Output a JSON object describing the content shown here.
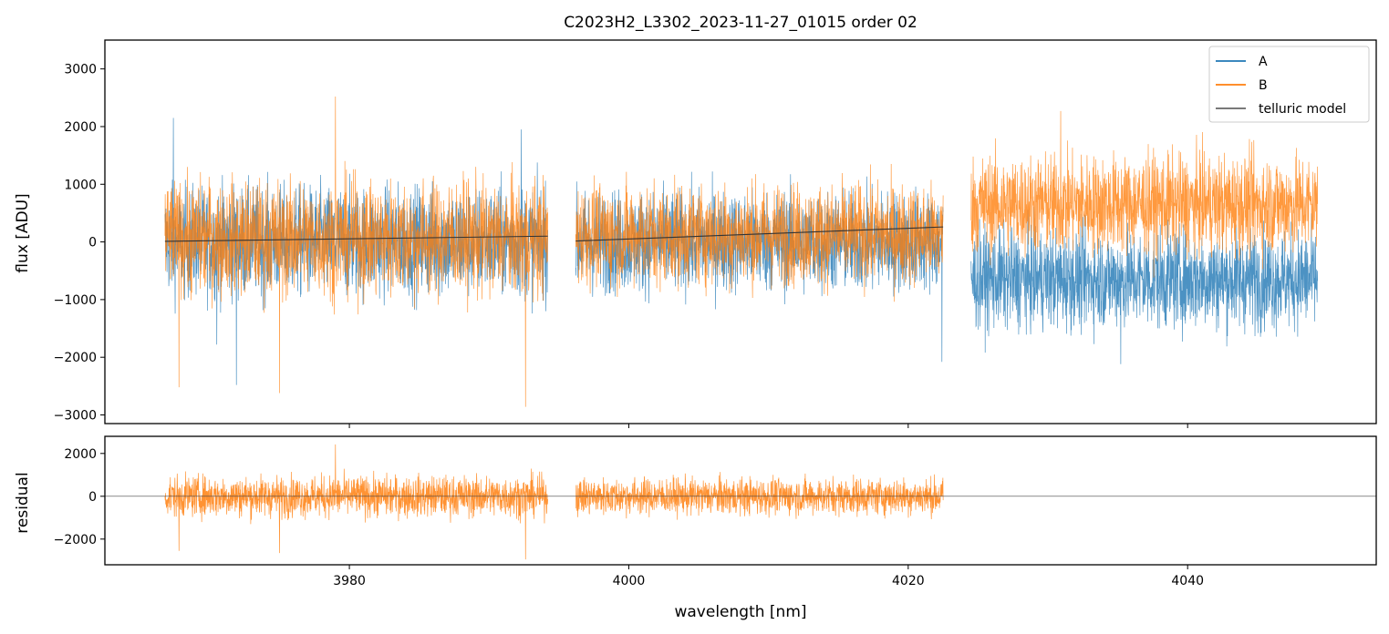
{
  "chart_data": [
    {
      "panel": "top",
      "type": "line",
      "title": "C2023H2_L3302_2023-11-27_01015  order 02",
      "xlabel": "",
      "ylabel": "flux [ADU]",
      "xlim": [
        3962.5,
        4053.5
      ],
      "ylim": [
        -3150,
        3500
      ],
      "xticks": [
        3980,
        4000,
        4020,
        4040
      ],
      "yticks": [
        -3000,
        -2000,
        -1000,
        0,
        1000,
        2000,
        3000
      ],
      "ytick_labels": [
        "−3000",
        "−2000",
        "−1000",
        "0",
        "1000",
        "2000",
        "3000"
      ],
      "grid": false,
      "legend_position": "top-right",
      "series": [
        {
          "name": "A",
          "color": "#1f77b4",
          "segments": [
            {
              "x_start": 3966.8,
              "x_end": 3994.2,
              "mean": 0,
              "sigma": 470,
              "extremes": [
                [
                  3967.4,
                  2150
                ],
                [
                  3970.5,
                  -1780
                ],
                [
                  3971.9,
                  -2480
                ],
                [
                  3992.3,
                  1950
                ]
              ]
            },
            {
              "x_start": 3996.2,
              "x_end": 4022.5,
              "mean": 0,
              "sigma": 430,
              "extremes": [
                [
                  4022.4,
                  -2080
                ]
              ]
            },
            {
              "x_start": 4024.5,
              "x_end": 4049.3,
              "mean": -650,
              "sigma": 420,
              "extremes": [
                [
                  4035.2,
                  -2120
                ]
              ]
            }
          ]
        },
        {
          "name": "B",
          "color": "#ff7f0e",
          "segments": [
            {
              "x_start": 3966.8,
              "x_end": 3994.2,
              "mean": 60,
              "sigma": 490,
              "extremes": [
                [
                  3979.0,
                  2520
                ],
                [
                  3975.0,
                  -2620
                ],
                [
                  3992.6,
                  -2860
                ],
                [
                  3967.8,
                  -2520
                ]
              ]
            },
            {
              "x_start": 3996.2,
              "x_end": 4022.5,
              "mean": 130,
              "sigma": 430,
              "extremes": []
            },
            {
              "x_start": 4024.5,
              "x_end": 4049.3,
              "mean": 650,
              "sigma": 420,
              "extremes": [
                [
                  4030.9,
                  2270
                ]
              ]
            }
          ]
        },
        {
          "name": "telluric model",
          "color": "#333333",
          "points": [
            [
              3966.8,
              10
            ],
            [
              3994.2,
              100
            ],
            [
              3996.2,
              15
            ],
            [
              4022.5,
              260
            ]
          ]
        }
      ]
    },
    {
      "panel": "bottom",
      "type": "line",
      "title": "",
      "xlabel": "wavelength [nm]",
      "ylabel": "residual",
      "xlim": [
        3962.5,
        4053.5
      ],
      "ylim": [
        -3200,
        2800
      ],
      "xticks": [
        3980,
        4000,
        4020,
        4040
      ],
      "xtick_labels": [
        "3980",
        "4000",
        "4020",
        "4040"
      ],
      "yticks": [
        -2000,
        0,
        2000
      ],
      "ytick_labels": [
        "−2000",
        "0",
        "2000"
      ],
      "grid": false,
      "zero_line": true,
      "series": [
        {
          "name": "residual",
          "color": "#ff7f0e",
          "segments": [
            {
              "x_start": 3966.8,
              "x_end": 3994.2,
              "mean": 0,
              "sigma": 470,
              "extremes": [
                [
                  3979.0,
                  2420
                ],
                [
                  3975.0,
                  -2650
                ],
                [
                  3992.6,
                  -2950
                ],
                [
                  3967.8,
                  -2550
                ]
              ]
            },
            {
              "x_start": 3996.2,
              "x_end": 4022.5,
              "mean": 0,
              "sigma": 420,
              "extremes": []
            }
          ]
        }
      ]
    }
  ]
}
